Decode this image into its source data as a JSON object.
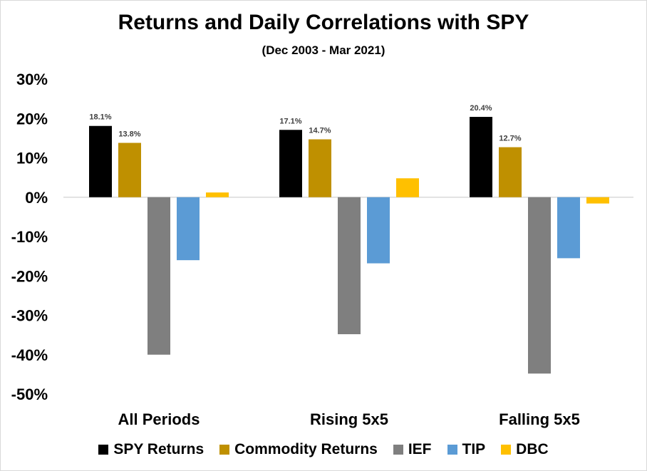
{
  "chart_data": {
    "type": "bar",
    "title": "Returns and Daily Correlations with SPY",
    "subtitle": "(Dec 2003 - Mar 2021)",
    "categories": [
      "All Periods",
      "Rising 5x5",
      "Falling 5x5"
    ],
    "series": [
      {
        "name": "SPY Returns",
        "color": "#000000",
        "values": [
          18.1,
          17.1,
          20.4
        ],
        "labels": [
          "18.1%",
          "17.1%",
          "20.4%"
        ]
      },
      {
        "name": "Commodity Returns",
        "color": "#bf9000",
        "values": [
          13.8,
          14.7,
          12.7
        ],
        "labels": [
          "13.8%",
          "14.7%",
          "12.7%"
        ]
      },
      {
        "name": "IEF",
        "color": "#7f7f7f",
        "values": [
          -40.0,
          -34.8,
          -44.8
        ]
      },
      {
        "name": "TIP",
        "color": "#5b9bd5",
        "values": [
          -16.0,
          -16.8,
          -15.5
        ]
      },
      {
        "name": "DBC",
        "color": "#ffc000",
        "values": [
          1.2,
          4.8,
          -1.6
        ]
      }
    ],
    "ylim": [
      -50,
      30
    ],
    "yticks": [
      30,
      20,
      10,
      0,
      -10,
      -20,
      -30,
      -40,
      -50
    ],
    "ytick_labels": [
      "30%",
      "20%",
      "10%",
      "0%",
      "-10%",
      "-20%",
      "-30%",
      "-40%",
      "-50%"
    ],
    "grid": false,
    "legend_position": "bottom"
  }
}
